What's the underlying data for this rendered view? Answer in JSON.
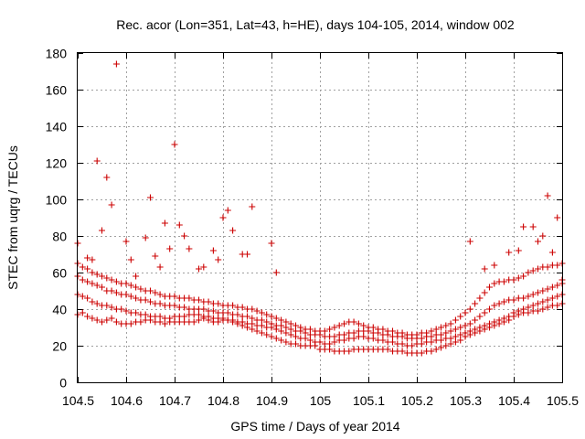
{
  "chart_data": {
    "type": "scatter",
    "title": "Rec. acor (Lon=351, Lat=43, h=HE), days 104-105, 2014, window 002",
    "xlabel": "GPS time / Days of year 2014",
    "ylabel": "STEC from uqrg / TECUs",
    "xlim": [
      104.5,
      105.5
    ],
    "ylim": [
      0,
      180
    ],
    "x_ticks": [
      "104.5",
      "104.6",
      "104.7",
      "104.8",
      "104.9",
      "105",
      "105.1",
      "105.2",
      "105.3",
      "105.4",
      "105.5"
    ],
    "y_ticks": [
      "0",
      "20",
      "40",
      "60",
      "80",
      "100",
      "120",
      "140",
      "160",
      "180"
    ],
    "grid": true,
    "marker": "+",
    "color": "#cc0000",
    "series": [
      {
        "x": [
          104.5,
          104.51,
          104.52,
          104.53,
          104.54,
          104.55,
          104.56,
          104.57,
          104.58,
          104.59,
          104.6,
          104.61,
          104.62,
          104.63,
          104.64,
          104.65,
          104.66,
          104.67,
          104.68,
          104.69,
          104.7,
          104.71,
          104.72,
          104.73,
          104.74,
          104.75,
          104.76,
          104.77,
          104.78,
          104.79,
          104.8,
          104.81,
          104.82,
          104.83,
          104.84,
          104.85,
          104.86,
          104.87,
          104.88,
          104.89,
          104.9,
          104.91,
          104.92,
          104.93,
          104.94,
          104.95,
          104.96,
          104.97,
          104.98,
          104.99,
          105.0,
          105.01,
          105.02,
          105.03,
          105.04,
          105.05,
          105.06,
          105.07,
          105.08,
          105.09,
          105.1,
          105.11,
          105.12,
          105.13,
          105.14,
          105.15,
          105.16,
          105.17,
          105.18,
          105.19,
          105.2,
          105.21,
          105.22,
          105.23,
          105.24,
          105.25,
          105.26,
          105.27,
          105.28,
          105.29,
          105.3,
          105.31,
          105.32,
          105.33,
          105.34,
          105.35,
          105.36,
          105.37,
          105.38,
          105.39,
          105.4,
          105.41,
          105.42,
          105.43,
          105.44,
          105.45,
          105.46,
          105.47,
          105.48,
          105.49,
          105.5
        ],
        "y": [
          37,
          38,
          36,
          35,
          34,
          33,
          34,
          35,
          33,
          32,
          32,
          32,
          33,
          33,
          34,
          34,
          33,
          33,
          32,
          33,
          33,
          33,
          33,
          33,
          33,
          34,
          35,
          34,
          33,
          33,
          34,
          34,
          33,
          32,
          31,
          30,
          29,
          28,
          27,
          26,
          25,
          24,
          23,
          22,
          21,
          21,
          20,
          20,
          20,
          20,
          18,
          18,
          18,
          17,
          17,
          17,
          17,
          18,
          18,
          18,
          18,
          18,
          18,
          18,
          18,
          17,
          17,
          17,
          16,
          16,
          16,
          16,
          17,
          17,
          18,
          19,
          20,
          21,
          22,
          23,
          25,
          26,
          27,
          28,
          29,
          30,
          31,
          32,
          33,
          34,
          36,
          37,
          38,
          38,
          39,
          39,
          40,
          41,
          42,
          42,
          43
        ]
      },
      {
        "x": [
          104.5,
          104.51,
          104.52,
          104.53,
          104.54,
          104.55,
          104.56,
          104.57,
          104.58,
          104.59,
          104.6,
          104.61,
          104.62,
          104.63,
          104.64,
          104.65,
          104.66,
          104.67,
          104.68,
          104.69,
          104.7,
          104.71,
          104.72,
          104.73,
          104.74,
          104.75,
          104.76,
          104.77,
          104.78,
          104.79,
          104.8,
          104.81,
          104.82,
          104.83,
          104.84,
          104.85,
          104.86,
          104.87,
          104.88,
          104.89,
          104.9,
          104.91,
          104.92,
          104.93,
          104.94,
          104.95,
          104.96,
          104.97,
          104.98,
          104.99,
          105.0,
          105.01,
          105.02,
          105.03,
          105.04,
          105.05,
          105.06,
          105.07,
          105.08,
          105.09,
          105.1,
          105.11,
          105.12,
          105.13,
          105.14,
          105.15,
          105.16,
          105.17,
          105.18,
          105.19,
          105.2,
          105.21,
          105.22,
          105.23,
          105.24,
          105.25,
          105.26,
          105.27,
          105.28,
          105.29,
          105.3,
          105.31,
          105.32,
          105.33,
          105.34,
          105.35,
          105.36,
          105.37,
          105.38,
          105.39,
          105.4,
          105.41,
          105.42,
          105.43,
          105.44,
          105.45,
          105.46,
          105.47,
          105.48,
          105.49,
          105.5
        ],
        "y": [
          48,
          47,
          46,
          44,
          43,
          42,
          42,
          41,
          40,
          40,
          39,
          38,
          38,
          37,
          37,
          36,
          36,
          36,
          35,
          35,
          36,
          36,
          36,
          37,
          37,
          37,
          36,
          36,
          35,
          35,
          35,
          34,
          34,
          33,
          33,
          32,
          32,
          31,
          31,
          30,
          30,
          29,
          28,
          27,
          26,
          25,
          24,
          24,
          23,
          22,
          22,
          21,
          21,
          22,
          23,
          23,
          24,
          24,
          25,
          25,
          24,
          24,
          23,
          23,
          22,
          22,
          21,
          21,
          20,
          20,
          21,
          21,
          22,
          22,
          23,
          23,
          24,
          24,
          25,
          26,
          27,
          28,
          29,
          30,
          31,
          32,
          33,
          34,
          35,
          36,
          38,
          39,
          40,
          41,
          42,
          43,
          44,
          45,
          46,
          47,
          48
        ]
      },
      {
        "x": [
          104.5,
          104.51,
          104.52,
          104.53,
          104.54,
          104.55,
          104.56,
          104.57,
          104.58,
          104.59,
          104.6,
          104.61,
          104.62,
          104.63,
          104.64,
          104.65,
          104.66,
          104.67,
          104.68,
          104.69,
          104.7,
          104.71,
          104.72,
          104.73,
          104.74,
          104.75,
          104.76,
          104.77,
          104.78,
          104.79,
          104.8,
          104.81,
          104.82,
          104.83,
          104.84,
          104.85,
          104.86,
          104.87,
          104.88,
          104.89,
          104.9,
          104.91,
          104.92,
          104.93,
          104.94,
          104.95,
          104.96,
          104.97,
          104.98,
          104.99,
          105.0,
          105.01,
          105.02,
          105.03,
          105.04,
          105.05,
          105.06,
          105.07,
          105.08,
          105.09,
          105.1,
          105.11,
          105.12,
          105.13,
          105.14,
          105.15,
          105.16,
          105.17,
          105.18,
          105.19,
          105.2,
          105.21,
          105.22,
          105.23,
          105.24,
          105.25,
          105.26,
          105.27,
          105.28,
          105.29,
          105.3,
          105.31,
          105.32,
          105.33,
          105.34,
          105.35,
          105.36,
          105.37,
          105.38,
          105.39,
          105.4,
          105.41,
          105.42,
          105.43,
          105.44,
          105.45,
          105.46,
          105.47,
          105.48,
          105.49,
          105.5
        ],
        "y": [
          58,
          56,
          55,
          54,
          53,
          52,
          50,
          50,
          49,
          48,
          48,
          47,
          46,
          45,
          45,
          44,
          43,
          43,
          42,
          42,
          42,
          41,
          41,
          40,
          40,
          40,
          40,
          39,
          39,
          38,
          38,
          38,
          37,
          37,
          36,
          36,
          35,
          34,
          34,
          33,
          32,
          31,
          31,
          30,
          29,
          28,
          28,
          27,
          26,
          26,
          26,
          25,
          25,
          25,
          26,
          26,
          27,
          27,
          28,
          28,
          28,
          27,
          27,
          26,
          26,
          25,
          25,
          25,
          24,
          24,
          24,
          24,
          25,
          25,
          26,
          26,
          27,
          28,
          29,
          30,
          31,
          32,
          34,
          36,
          38,
          40,
          42,
          43,
          44,
          45,
          45,
          46,
          46,
          47,
          48,
          49,
          50,
          51,
          52,
          53,
          54
        ]
      },
      {
        "x": [
          104.5,
          104.51,
          104.52,
          104.53,
          104.54,
          104.55,
          104.56,
          104.57,
          104.58,
          104.59,
          104.6,
          104.61,
          104.62,
          104.63,
          104.64,
          104.65,
          104.66,
          104.67,
          104.68,
          104.69,
          104.7,
          104.71,
          104.72,
          104.73,
          104.74,
          104.75,
          104.76,
          104.77,
          104.78,
          104.79,
          104.8,
          104.81,
          104.82,
          104.83,
          104.84,
          104.85,
          104.86,
          104.87,
          104.88,
          104.89,
          104.9,
          104.91,
          104.92,
          104.93,
          104.94,
          104.95,
          104.96,
          104.97,
          104.98,
          104.99,
          105.0,
          105.01,
          105.02,
          105.03,
          105.04,
          105.05,
          105.06,
          105.07,
          105.08,
          105.09,
          105.1,
          105.11,
          105.12,
          105.13,
          105.14,
          105.15,
          105.16,
          105.17,
          105.18,
          105.19,
          105.2,
          105.21,
          105.22,
          105.23,
          105.24,
          105.25,
          105.26,
          105.27,
          105.28,
          105.29,
          105.3,
          105.31,
          105.32,
          105.33,
          105.34,
          105.35,
          105.36,
          105.37,
          105.38,
          105.39,
          105.4,
          105.41,
          105.42,
          105.43,
          105.44,
          105.45,
          105.46,
          105.47,
          105.48,
          105.49,
          105.5
        ],
        "y": [
          65,
          63,
          62,
          60,
          59,
          58,
          57,
          56,
          55,
          54,
          54,
          53,
          52,
          51,
          50,
          50,
          49,
          48,
          47,
          47,
          47,
          46,
          46,
          46,
          45,
          45,
          44,
          44,
          43,
          43,
          42,
          42,
          42,
          41,
          41,
          40,
          40,
          39,
          38,
          37,
          36,
          35,
          34,
          33,
          32,
          31,
          30,
          29,
          29,
          28,
          28,
          28,
          29,
          30,
          31,
          32,
          33,
          33,
          32,
          31,
          30,
          30,
          29,
          29,
          28,
          28,
          27,
          27,
          26,
          26,
          26,
          27,
          27,
          28,
          29,
          30,
          31,
          32,
          34,
          36,
          38,
          40,
          43,
          46,
          49,
          52,
          54,
          55,
          55,
          56,
          56,
          57,
          58,
          60,
          61,
          62,
          63,
          63,
          64,
          64,
          65
        ]
      },
      {
        "x": [
          104.5,
          104.52,
          104.53,
          104.54,
          104.55,
          104.56,
          104.57,
          104.58,
          104.6,
          104.61,
          104.62,
          104.64,
          104.65,
          104.66,
          104.67,
          104.68,
          104.69,
          104.7,
          104.71,
          104.72,
          104.73,
          104.75,
          104.76,
          104.78,
          104.79,
          104.8,
          104.81,
          104.82,
          104.84,
          104.85,
          104.86,
          104.9,
          104.91,
          105.31,
          105.34,
          105.36,
          105.39,
          105.41,
          105.42,
          105.44,
          105.45,
          105.46,
          105.47,
          105.48,
          105.49,
          105.5
        ],
        "y": [
          76,
          68,
          67,
          121,
          83,
          112,
          97,
          174,
          77,
          67,
          58,
          79,
          101,
          69,
          63,
          87,
          73,
          130,
          86,
          80,
          73,
          62,
          63,
          72,
          67,
          90,
          94,
          83,
          70,
          70,
          96,
          76,
          60,
          77,
          62,
          64,
          71,
          72,
          85,
          85,
          77,
          80,
          102,
          71,
          90,
          56
        ]
      }
    ]
  }
}
